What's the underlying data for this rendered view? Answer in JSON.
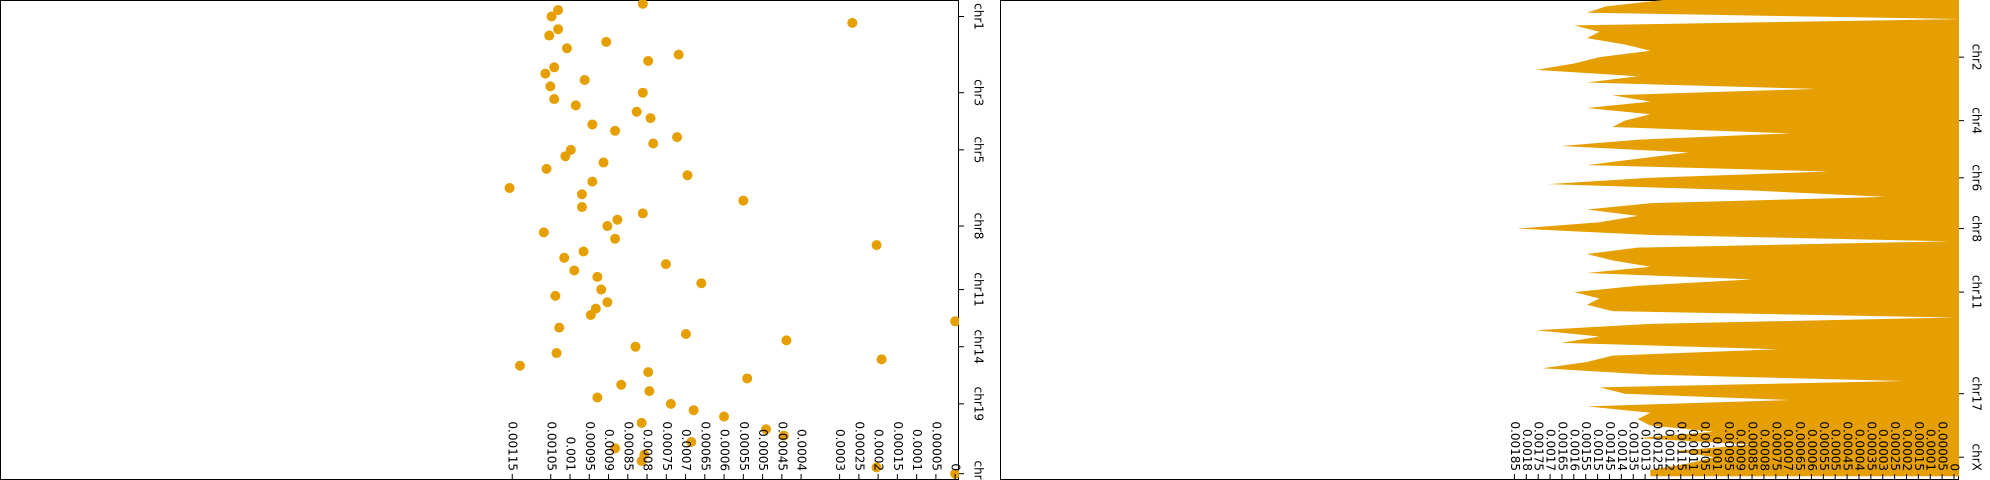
{
  "chart_data": [
    {
      "type": "scatter",
      "color": "#e69f00",
      "categories": [
        null,
        null,
        "chr1",
        null,
        null,
        null,
        null,
        null,
        null,
        null,
        null,
        null,
        null,
        null,
        "chr3",
        null,
        null,
        null,
        null,
        null,
        null,
        null,
        null,
        "chr5",
        null,
        null,
        null,
        null,
        null,
        null,
        null,
        null,
        null,
        null,
        null,
        "chr8",
        null,
        null,
        null,
        null,
        null,
        null,
        null,
        null,
        null,
        "chr11",
        null,
        null,
        null,
        null,
        null,
        null,
        null,
        null,
        "chr14",
        null,
        null,
        null,
        null,
        null,
        null,
        null,
        null,
        "chr19",
        null,
        null,
        null,
        null,
        null,
        null,
        null,
        null,
        null,
        null,
        "chrY"
      ],
      "values": [
        0.000811,
        0.001031,
        0.001048,
        0.000267,
        0.001031,
        0.001054,
        0.000906,
        0.001008,
        0.000718,
        0.000797,
        0.001041,
        0.001064,
        0.000962,
        0.001051,
        0.000811,
        0.001041,
        0.000985,
        0.000827,
        0.000791,
        0.000942,
        0.000883,
        0.000722,
        0.000784,
        0.000998,
        0.001012,
        0.000913,
        0.001061,
        0.000695,
        0.000942,
        0.001157,
        0.000969,
        0.00055,
        0.000969,
        0.000811,
        0.000877,
        0.000903,
        0.001068,
        0.000883,
        0.000204,
        0.000965,
        0.001015,
        0.000751,
        0.000989,
        0.000929,
        0.000659,
        0.000919,
        0.001038,
        0.000903,
        0.000933,
        0.000946,
        0,
        0.001028,
        0.000699,
        0.000438,
        0.00083,
        0.001035,
        0.000191,
        0.00113,
        0.000797,
        0.00054,
        0.000867,
        0.000794,
        0.000929,
        0.000738,
        0.000679,
        0.0006,
        0.000814,
        0.000491,
        0.000445,
        0.000685,
        0.000883,
        0.000807,
        0.000814,
        0.000204,
        0
      ],
      "xlim": [
        0.00248,
        -1e-05
      ],
      "xticks": [
        0,
        5e-05,
        0.0001,
        0.00015,
        0.0002,
        0.00025,
        0.0003,
        0.0004,
        0.00045,
        0.0005,
        0.00055,
        0.0006,
        0.00065,
        0.0007,
        0.00075,
        0.0008,
        0.00085,
        0.0009,
        0.00095,
        0.001,
        0.00105,
        0.00115
      ]
    },
    {
      "type": "area",
      "color": "#e69f00",
      "categories": [
        null,
        null,
        null,
        null,
        null,
        null,
        null,
        null,
        null,
        "chr2",
        null,
        null,
        null,
        null,
        null,
        null,
        null,
        null,
        null,
        "chr4",
        null,
        null,
        null,
        null,
        null,
        null,
        null,
        null,
        "chr6",
        null,
        null,
        null,
        null,
        null,
        null,
        null,
        "chr8",
        null,
        null,
        null,
        null,
        null,
        null,
        null,
        null,
        null,
        "chr11",
        null,
        null,
        null,
        null,
        null,
        null,
        null,
        null,
        null,
        null,
        null,
        null,
        null,
        null,
        null,
        "chr17",
        null,
        null,
        null,
        null,
        null,
        null,
        null,
        null,
        null,
        "chrX",
        null,
        null,
        null
      ],
      "values": [
        0.001224,
        0.001465,
        0.001545,
        -3.2e-05,
        0.001599,
        0.001492,
        0.001545,
        0.001385,
        0.001278,
        0.001492,
        0.001599,
        0.001759,
        0.001331,
        0.001545,
        0.000583,
        0.001438,
        0.001278,
        0.001545,
        0.001278,
        0.001385,
        0.001438,
        0.00069,
        0.001331,
        0.001652,
        0.001118,
        0.001331,
        0.001545,
        0.000529,
        0.001278,
        0.001706,
        0.00085,
        0.000289,
        0.001278,
        0.001545,
        0.001331,
        0.001492,
        0.001839,
        0.001278,
        2.1e-05,
        0.001331,
        0.001545,
        0.001438,
        0.001278,
        0.001545,
        0.00085,
        0.001331,
        0.001599,
        0.001492,
        0.001545,
        0.001438,
        -5e-06,
        0.001278,
        0.001759,
        0.001492,
        0.001652,
        0.000743,
        0.001438,
        0.001545,
        0.001732,
        0.001278,
        0.000209,
        0.001492,
        0.001385,
        0.00069,
        0.001545,
        0.001278,
        0.001331,
        0.001278,
        0.001011,
        0.001331,
        0.00085,
        0.001171,
        0.001011,
        0.001118,
        0.001278,
        0.001278
      ],
      "xlim": [
        0.004015,
        -2.1e-05
      ],
      "xticks": [
        0,
        5e-05,
        0.0001,
        0.00015,
        0.0002,
        0.00025,
        0.0003,
        0.00035,
        0.0004,
        0.00045,
        0.0005,
        0.00055,
        0.0006,
        0.00065,
        0.0007,
        0.00075,
        0.0008,
        0.00085,
        0.0009,
        0.00095,
        0.001,
        0.00105,
        0.0011,
        0.00115,
        0.0012,
        0.00125,
        0.0013,
        0.00135,
        0.0014,
        0.00145,
        0.0015,
        0.00155,
        0.0016,
        0.00165,
        0.0017,
        0.00175,
        0.0018,
        0.00185
      ]
    }
  ]
}
